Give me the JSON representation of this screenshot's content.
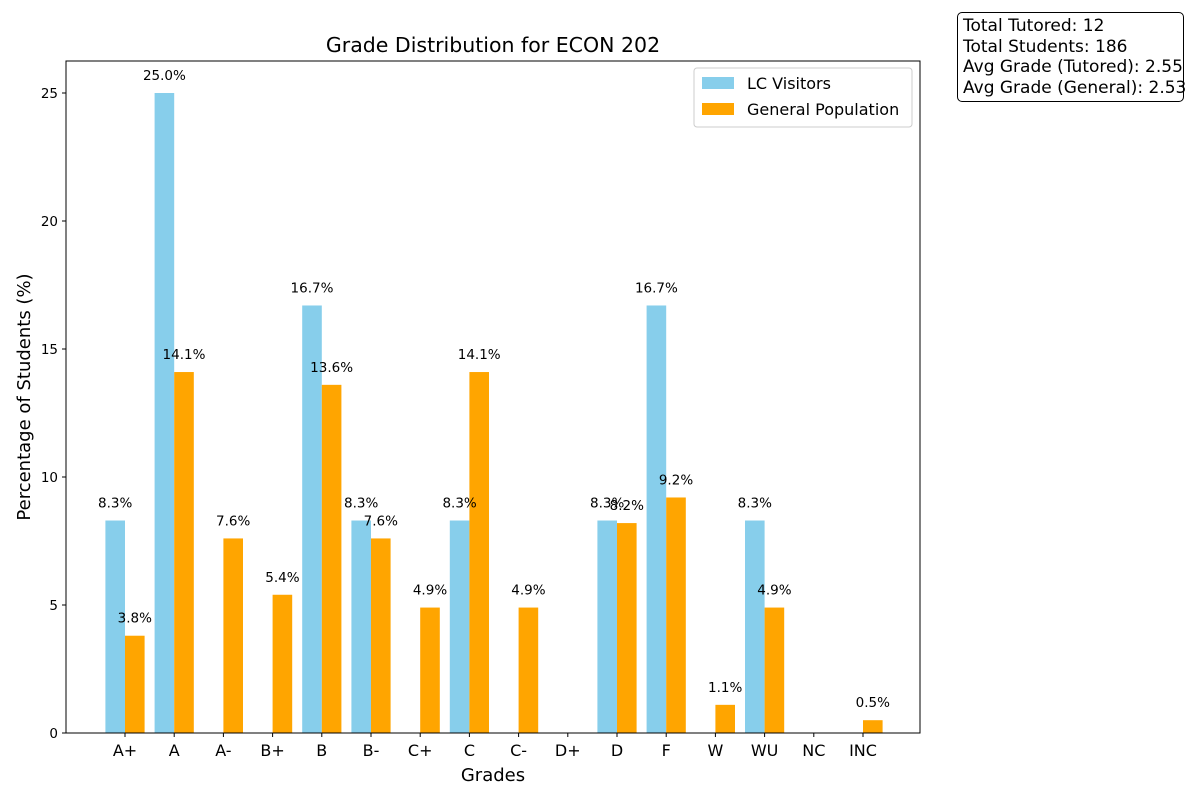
{
  "chart_data": {
    "type": "bar",
    "title": "Grade Distribution for ECON 202",
    "xlabel": "Grades",
    "ylabel": "Percentage of Students (%)",
    "categories": [
      "A+",
      "A",
      "A-",
      "B+",
      "B",
      "B-",
      "C+",
      "C",
      "C-",
      "D+",
      "D",
      "F",
      "W",
      "WU",
      "NC",
      "INC"
    ],
    "series": [
      {
        "name": "LC Visitors",
        "color": "#87CEEB",
        "values": [
          8.3,
          25.0,
          0,
          0,
          16.7,
          8.3,
          0,
          8.3,
          0,
          0,
          8.3,
          16.7,
          0,
          8.3,
          0,
          0
        ]
      },
      {
        "name": "General Population",
        "color": "#FFA500",
        "values": [
          3.8,
          14.1,
          7.6,
          5.4,
          13.6,
          7.6,
          4.9,
          14.1,
          4.9,
          0,
          8.2,
          9.2,
          1.1,
          4.9,
          0,
          0.5
        ]
      }
    ],
    "ylim": [
      0,
      26.25
    ],
    "yticks": [
      0,
      5,
      10,
      15,
      20,
      25
    ],
    "legend": "top-right",
    "grid": false,
    "value_label_suffix": "%"
  },
  "stats": {
    "total_tutored": "Total Tutored: 12",
    "total_students": "Total Students: 186",
    "avg_tutored": "Avg Grade (Tutored): 2.55",
    "avg_general": "Avg Grade (General): 2.53"
  }
}
